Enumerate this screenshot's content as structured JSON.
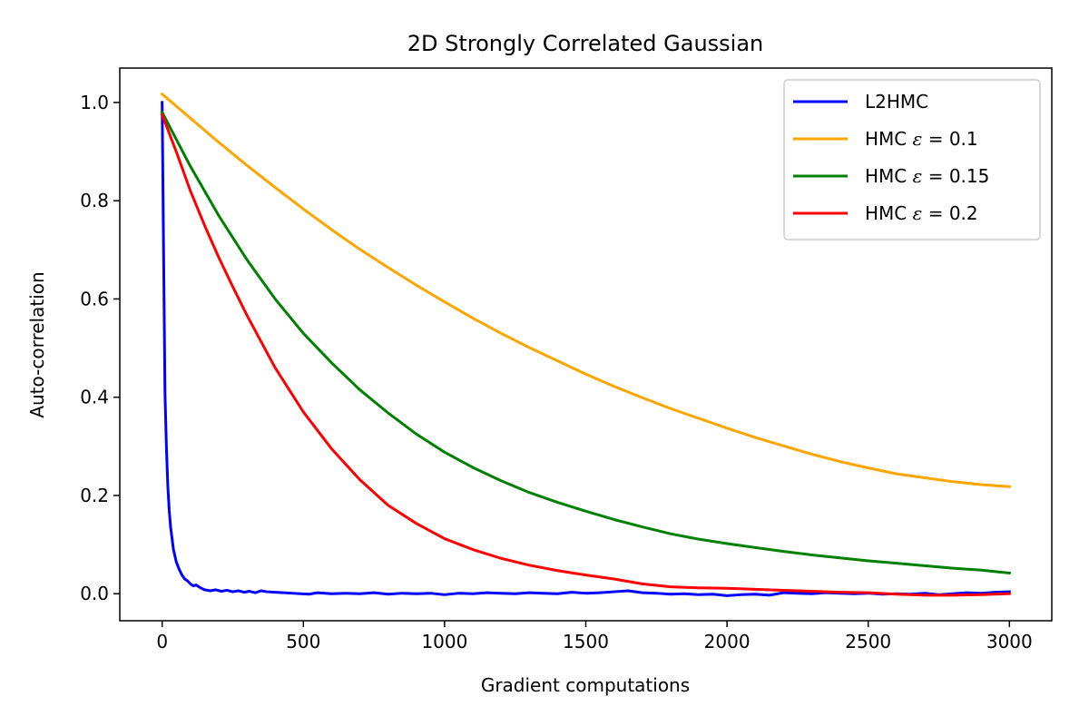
{
  "chart_data": {
    "type": "line",
    "title": "2D Strongly Correlated Gaussian",
    "xlabel": "Gradient computations",
    "ylabel": "Auto-correlation",
    "xlim": [
      -150,
      3150
    ],
    "ylim": [
      -0.055,
      1.07
    ],
    "xticks": [
      0,
      500,
      1000,
      1500,
      2000,
      2500,
      3000
    ],
    "yticks": [
      0.0,
      0.2,
      0.4,
      0.6,
      0.8,
      1.0
    ],
    "xtick_labels": [
      "0",
      "500",
      "1000",
      "1500",
      "2000",
      "2500",
      "3000"
    ],
    "ytick_labels": [
      "0.0",
      "0.2",
      "0.4",
      "0.6",
      "0.8",
      "1.0"
    ],
    "grid": false,
    "legend_position": "top-right",
    "series": [
      {
        "name": "L2HMC",
        "color": "#0000ff",
        "x": [
          0,
          5,
          10,
          15,
          20,
          25,
          30,
          40,
          50,
          60,
          70,
          80,
          90,
          100,
          110,
          120,
          130,
          140,
          150,
          170,
          190,
          210,
          230,
          250,
          270,
          290,
          310,
          330,
          350,
          370,
          400,
          430,
          460,
          490,
          520,
          550,
          600,
          650,
          700,
          750,
          800,
          850,
          900,
          950,
          1000,
          1050,
          1100,
          1150,
          1200,
          1250,
          1300,
          1350,
          1400,
          1450,
          1500,
          1550,
          1600,
          1650,
          1700,
          1750,
          1800,
          1850,
          1900,
          1950,
          2000,
          2050,
          2100,
          2150,
          2200,
          2250,
          2300,
          2350,
          2400,
          2450,
          2500,
          2550,
          2600,
          2650,
          2700,
          2750,
          2800,
          2850,
          2900,
          2950,
          3000
        ],
        "values": [
          1.0,
          0.7,
          0.41,
          0.3,
          0.22,
          0.17,
          0.135,
          0.09,
          0.065,
          0.05,
          0.038,
          0.03,
          0.026,
          0.02,
          0.016,
          0.018,
          0.014,
          0.011,
          0.008,
          0.006,
          0.008,
          0.005,
          0.007,
          0.004,
          0.006,
          0.003,
          0.005,
          0.002,
          0.006,
          0.004,
          0.003,
          0.002,
          0.001,
          0.0,
          -0.001,
          0.002,
          0.0,
          0.001,
          0.0,
          0.002,
          -0.001,
          0.001,
          0.0,
          0.001,
          -0.002,
          0.001,
          0.0,
          0.002,
          0.001,
          0.0,
          0.002,
          0.001,
          0.0,
          0.003,
          0.001,
          0.002,
          0.004,
          0.006,
          0.002,
          0.001,
          -0.001,
          0.0,
          -0.002,
          -0.001,
          -0.004,
          -0.002,
          -0.001,
          -0.003,
          0.002,
          0.001,
          0.0,
          0.002,
          0.001,
          0.0,
          0.001,
          -0.001,
          0.0,
          -0.001,
          0.001,
          -0.002,
          0.0,
          0.002,
          0.001,
          0.003,
          0.004
        ]
      },
      {
        "name": "HMC ε = 0.1",
        "label_prefix": "HMC ",
        "label_symbol": "ε",
        "label_suffix": " = 0.1",
        "color": "#ffa500",
        "x": [
          0,
          100,
          200,
          300,
          400,
          500,
          600,
          700,
          800,
          900,
          1000,
          1100,
          1200,
          1300,
          1400,
          1500,
          1600,
          1700,
          1800,
          1900,
          2000,
          2100,
          2200,
          2300,
          2400,
          2500,
          2600,
          2700,
          2800,
          2900,
          3000
        ],
        "values": [
          1.017,
          0.968,
          0.919,
          0.872,
          0.827,
          0.783,
          0.741,
          0.701,
          0.664,
          0.628,
          0.594,
          0.561,
          0.53,
          0.501,
          0.474,
          0.447,
          0.422,
          0.399,
          0.377,
          0.357,
          0.337,
          0.318,
          0.301,
          0.284,
          0.269,
          0.256,
          0.244,
          0.236,
          0.228,
          0.222,
          0.218
        ]
      },
      {
        "name": "HMC ε = 0.15",
        "label_prefix": "HMC ",
        "label_symbol": "ε",
        "label_suffix": " = 0.15",
        "color": "#008000",
        "x": [
          0,
          100,
          200,
          300,
          400,
          500,
          600,
          700,
          800,
          900,
          1000,
          1100,
          1200,
          1300,
          1400,
          1500,
          1600,
          1700,
          1800,
          1900,
          2000,
          2100,
          2200,
          2300,
          2400,
          2500,
          2600,
          2700,
          2800,
          2900,
          3000
        ],
        "values": [
          0.98,
          0.87,
          0.77,
          0.68,
          0.6,
          0.53,
          0.47,
          0.415,
          0.368,
          0.325,
          0.288,
          0.257,
          0.23,
          0.206,
          0.186,
          0.168,
          0.151,
          0.136,
          0.122,
          0.111,
          0.102,
          0.094,
          0.086,
          0.079,
          0.073,
          0.067,
          0.062,
          0.057,
          0.052,
          0.048,
          0.042
        ]
      },
      {
        "name": "HMC ε = 0.2",
        "label_prefix": "HMC ",
        "label_symbol": "ε",
        "label_suffix": " = 0.2",
        "color": "#ff0000",
        "x": [
          0,
          50,
          100,
          150,
          200,
          250,
          300,
          400,
          500,
          600,
          700,
          800,
          900,
          1000,
          1100,
          1200,
          1300,
          1400,
          1500,
          1600,
          1700,
          1800,
          1900,
          2000,
          2100,
          2200,
          2300,
          2400,
          2500,
          2600,
          2700,
          2800,
          2900,
          3000
        ],
        "values": [
          0.975,
          0.9,
          0.82,
          0.75,
          0.685,
          0.625,
          0.567,
          0.46,
          0.37,
          0.295,
          0.232,
          0.18,
          0.143,
          0.112,
          0.09,
          0.072,
          0.058,
          0.047,
          0.038,
          0.03,
          0.02,
          0.014,
          0.012,
          0.011,
          0.009,
          0.007,
          0.005,
          0.003,
          0.002,
          -0.001,
          -0.003,
          -0.003,
          -0.002,
          0.0
        ]
      }
    ]
  }
}
